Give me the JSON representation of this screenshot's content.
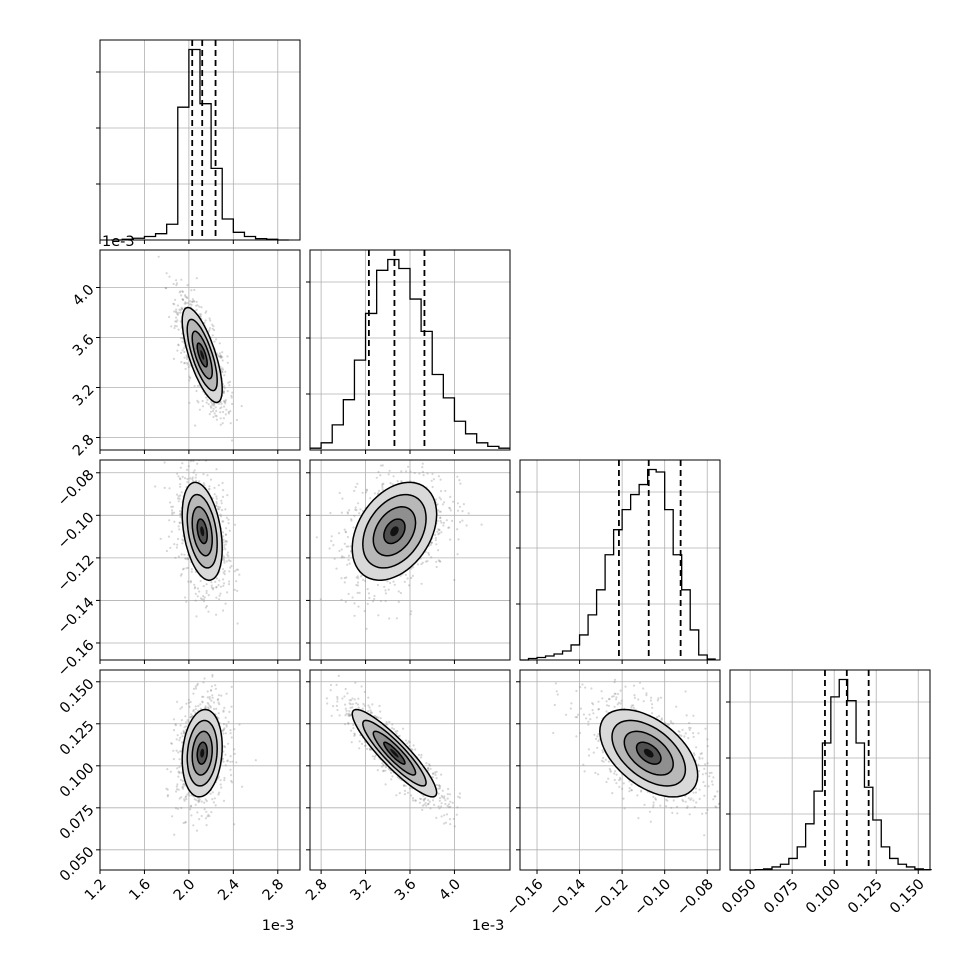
{
  "chart_data": [
    {
      "type": "histogram",
      "panel": "1,1",
      "xlim": [
        0.0012,
        0.003
      ],
      "x_ticks": [
        0.0012,
        0.0016,
        0.002,
        0.0024,
        0.0028
      ],
      "x_offset_text": "1e-3",
      "bin_edges": [
        0.0013,
        0.0014,
        0.0015,
        0.0016,
        0.0017,
        0.0018,
        0.0019,
        0.002,
        0.0021,
        0.0022,
        0.0023,
        0.0024,
        0.0025,
        0.0026,
        0.0027,
        0.0028,
        0.0029
      ],
      "counts": [
        0,
        2,
        5,
        10,
        18,
        45,
        380,
        545,
        390,
        205,
        60,
        22,
        10,
        4,
        2,
        0
      ],
      "quantiles": [
        0.00203,
        0.00212,
        0.00224
      ]
    },
    {
      "type": "histogram",
      "panel": "2,2",
      "xlim": [
        0.0027,
        0.0045
      ],
      "x_ticks": [
        0.0028,
        0.0032,
        0.0036,
        0.004
      ],
      "x_tick_labels": [
        "2.8",
        "3.2",
        "3.6",
        "4.0"
      ],
      "x_offset_text": "1e-3",
      "bin_edges": [
        0.0027,
        0.0028,
        0.0029,
        0.003,
        0.0031,
        0.0032,
        0.0033,
        0.0034,
        0.0035,
        0.0036,
        0.0037,
        0.0038,
        0.0039,
        0.004,
        0.0041,
        0.0042,
        0.0043,
        0.0044,
        0.0045
      ],
      "counts": [
        5,
        20,
        70,
        140,
        250,
        380,
        500,
        530,
        505,
        420,
        330,
        210,
        145,
        80,
        45,
        20,
        10,
        5
      ],
      "quantiles": [
        0.00323,
        0.00346,
        0.00373
      ]
    },
    {
      "type": "histogram",
      "panel": "3,3",
      "xlim": [
        -0.168,
        -0.074
      ],
      "x_ticks": [
        -0.16,
        -0.14,
        -0.12,
        -0.1,
        -0.08
      ],
      "x_tick_labels": [
        "−0.16",
        "−0.14",
        "−0.12",
        "−0.10",
        "−0.08"
      ],
      "bin_edges": [
        -0.168,
        -0.164,
        -0.16,
        -0.156,
        -0.152,
        -0.148,
        -0.144,
        -0.14,
        -0.136,
        -0.132,
        -0.128,
        -0.124,
        -0.12,
        -0.116,
        -0.112,
        -0.108,
        -0.104,
        -0.1,
        -0.096,
        -0.092,
        -0.088,
        -0.084,
        -0.08,
        -0.076
      ],
      "counts": [
        0,
        3,
        5,
        8,
        12,
        18,
        30,
        50,
        90,
        140,
        210,
        260,
        300,
        330,
        350,
        380,
        375,
        300,
        210,
        140,
        60,
        10,
        2
      ],
      "quantiles": [
        -0.1215,
        -0.1075,
        -0.0925
      ]
    },
    {
      "type": "histogram",
      "panel": "4,4",
      "xlim": [
        0.038,
        0.157
      ],
      "x_ticks": [
        0.05,
        0.075,
        0.1,
        0.125,
        0.15
      ],
      "x_tick_labels": [
        "0.050",
        "0.075",
        "0.100",
        "0.125",
        "0.150"
      ],
      "bin_edges": [
        0.038,
        0.043,
        0.048,
        0.053,
        0.058,
        0.063,
        0.068,
        0.073,
        0.078,
        0.083,
        0.088,
        0.093,
        0.098,
        0.103,
        0.108,
        0.113,
        0.118,
        0.123,
        0.128,
        0.133,
        0.138,
        0.143,
        0.148,
        0.153,
        0.158
      ],
      "counts": [
        0,
        0,
        0,
        1,
        3,
        8,
        15,
        30,
        60,
        120,
        205,
        330,
        450,
        495,
        440,
        330,
        215,
        130,
        60,
        30,
        15,
        8,
        3,
        1
      ],
      "quantiles": [
        0.0945,
        0.1075,
        0.1205
      ]
    },
    {
      "type": "scatter_contour",
      "panel": "2,1",
      "xlim": [
        0.0012,
        0.003
      ],
      "ylim": [
        0.0027,
        0.0043
      ],
      "y_ticks": [
        0.0028,
        0.0032,
        0.0036,
        0.004
      ],
      "y_tick_labels": [
        "2.8",
        "3.2",
        "3.6",
        "4.0"
      ],
      "y_offset_text": "1e-3",
      "center": [
        0.00212,
        0.00346
      ],
      "sigma": [
        9e-05,
        0.00019
      ],
      "corr": -0.72
    },
    {
      "type": "scatter_contour",
      "panel": "3,1",
      "xlim": [
        0.0012,
        0.003
      ],
      "ylim": [
        -0.168,
        -0.074
      ],
      "y_ticks": [
        -0.16,
        -0.14,
        -0.12,
        -0.1,
        -0.08
      ],
      "y_tick_labels": [
        "−0.16",
        "−0.14",
        "−0.12",
        "−0.10",
        "−0.08"
      ],
      "center": [
        0.00212,
        -0.1075
      ],
      "sigma": [
        9e-05,
        0.0115
      ],
      "corr": -0.35
    },
    {
      "type": "scatter_contour",
      "panel": "3,2",
      "xlim": [
        0.0027,
        0.0045
      ],
      "ylim": [
        -0.168,
        -0.074
      ],
      "center": [
        0.00346,
        -0.1075
      ],
      "sigma": [
        0.00019,
        0.0115
      ],
      "corr": 0.35
    },
    {
      "type": "scatter_contour",
      "panel": "4,1",
      "xlim": [
        0.0012,
        0.003
      ],
      "ylim": [
        0.038,
        0.157
      ],
      "x_ticks": [
        0.0012,
        0.0016,
        0.002,
        0.0024,
        0.0028
      ],
      "x_tick_labels": [
        "1.2",
        "1.6",
        "2.0",
        "2.4",
        "2.8"
      ],
      "x_offset_text": "1e-3",
      "y_ticks": [
        0.05,
        0.075,
        0.1,
        0.125,
        0.15
      ],
      "y_tick_labels": [
        "0.050",
        "0.075",
        "0.100",
        "0.125",
        "0.150"
      ],
      "center": [
        0.00212,
        0.1075
      ],
      "sigma": [
        9e-05,
        0.013
      ],
      "corr": 0.15
    },
    {
      "type": "scatter_contour",
      "panel": "4,2",
      "xlim": [
        0.0027,
        0.0045
      ],
      "ylim": [
        0.038,
        0.157
      ],
      "x_ticks": [
        0.0028,
        0.0032,
        0.0036,
        0.004
      ],
      "x_tick_labels": [
        "2.8",
        "3.2",
        "3.6",
        "4.0"
      ],
      "x_offset_text": "1e-3",
      "center": [
        0.00346,
        0.1075
      ],
      "sigma": [
        0.00019,
        0.013
      ],
      "corr": -0.9
    },
    {
      "type": "scatter_contour",
      "panel": "4,3",
      "xlim": [
        -0.168,
        -0.074
      ],
      "ylim": [
        0.038,
        0.157
      ],
      "x_ticks": [
        -0.16,
        -0.14,
        -0.12,
        -0.1,
        -0.08
      ],
      "x_tick_labels": [
        "−0.16",
        "−0.14",
        "−0.12",
        "−0.10",
        "−0.08"
      ],
      "center": [
        -0.1075,
        0.1075
      ],
      "sigma": [
        0.0115,
        0.013
      ],
      "corr": -0.5
    }
  ]
}
